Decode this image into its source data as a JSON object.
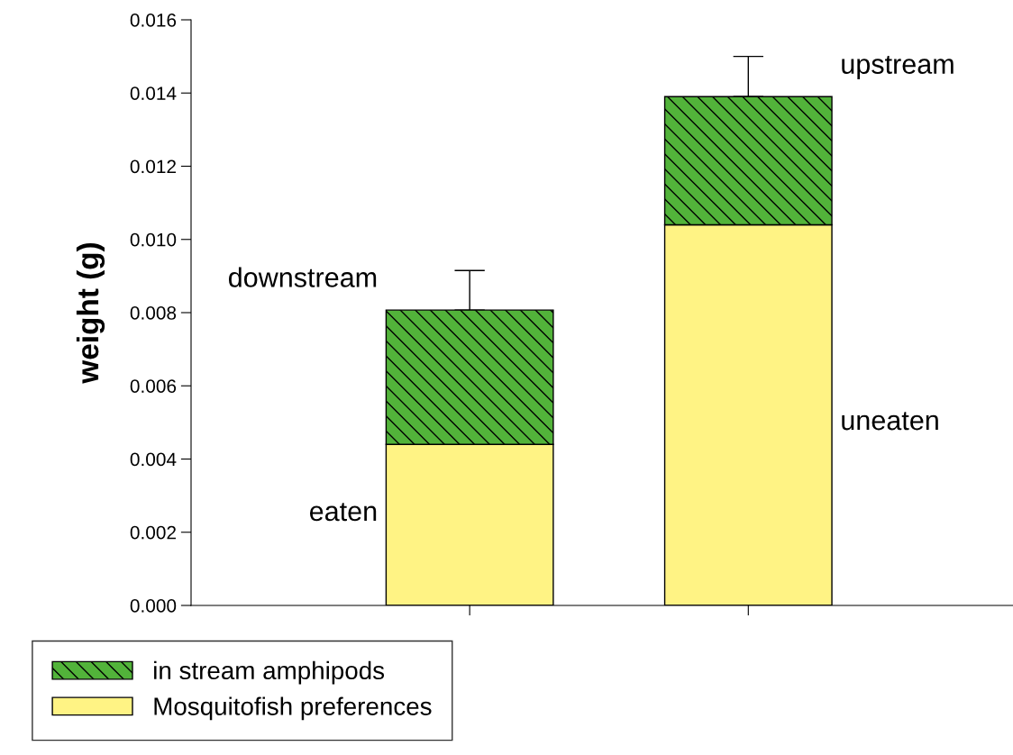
{
  "chart_data": {
    "type": "bar",
    "stacked": true,
    "categories": [
      null,
      null
    ],
    "ylabel": "weight (g)",
    "series": [
      {
        "name": "Mosquitofish preferences",
        "color": "#fff384",
        "values": [
          0.0044,
          0.0104
        ]
      },
      {
        "name": "in stream amphipods",
        "color": "#52b33a",
        "values": [
          0.00367,
          0.0035
        ],
        "errors": [
          [
            0.00807,
            0.00915
          ],
          [
            0.0139,
            0.015
          ]
        ]
      }
    ],
    "ylim": [
      0,
      0.016
    ],
    "yticks": [
      {
        "value": 0,
        "label": "0.000"
      },
      {
        "value": 0.002,
        "label": "0.002"
      },
      {
        "value": 0.004,
        "label": "0.004"
      },
      {
        "value": 0.006,
        "label": "0.006"
      },
      {
        "value": 0.008,
        "label": "0.008"
      },
      {
        "value": 0.01,
        "label": "0.010"
      },
      {
        "value": 0.012,
        "label": "0.012"
      },
      {
        "value": 0.014,
        "label": "0.014"
      },
      {
        "value": 0.016,
        "label": "0.016"
      }
    ],
    "annotations": [
      "downstream",
      "eaten",
      "upstream",
      "uneaten"
    ],
    "grid": false,
    "legend": "bottom left"
  }
}
